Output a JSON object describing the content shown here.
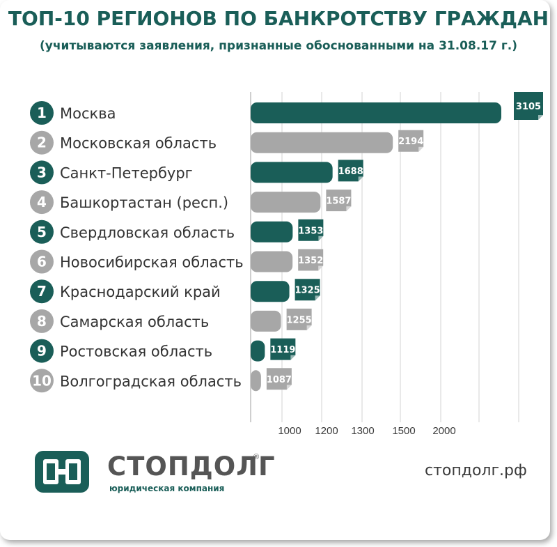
{
  "chart_data": {
    "type": "bar",
    "orientation": "horizontal",
    "title": "ТОП-10 РЕГИОНОВ ПО БАНКРОТСТВУ ГРАЖДАН",
    "subtitle": "(учитываются заявления, признанные обоснованными на 31.08.17 г.)",
    "categories": [
      "Москва",
      "Московская область",
      "Санкт-Петербург",
      "Башкортастан (респ.)",
      "Свердловская область",
      "Новосибирская область",
      "Краснодарский край",
      "Самарская область",
      "Ростовская область",
      "Волгоградская область"
    ],
    "ranks": [
      "1",
      "2",
      "3",
      "4",
      "5",
      "6",
      "7",
      "8",
      "9",
      "10"
    ],
    "values": [
      3105,
      2194,
      1688,
      1587,
      1353,
      1352,
      1325,
      1255,
      1119,
      1087
    ],
    "x_tick_labels": [
      "1000",
      "1200",
      "1300",
      "1500",
      "2000"
    ],
    "grid": true,
    "colors": {
      "odd": "#1a5e58",
      "even": "#a7a7a7"
    }
  },
  "header": {
    "title": "ТОП-10 РЕГИОНОВ ПО БАНКРОТСТВУ ГРАЖДАН",
    "subtitle": "(учитываются заявления, признанные обоснованными на 31.08.17 г.)"
  },
  "brand": {
    "name": "СТОПДОЛГ",
    "registered": "®",
    "tagline": "юридическая компания",
    "site": "стопдолг.рф",
    "accent": "#1a5e58"
  }
}
